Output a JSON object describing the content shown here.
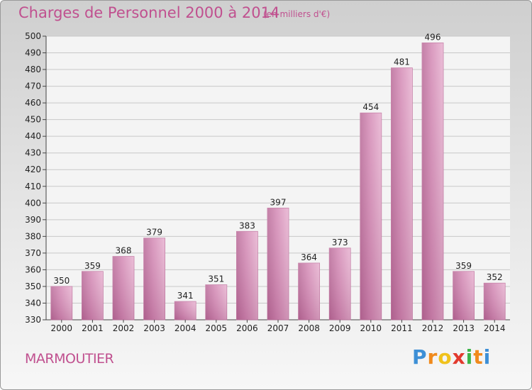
{
  "chart_data": {
    "type": "bar",
    "title": "Charges de Personnel 2000 à 2014",
    "subtitle": "(en milliers d'€)",
    "categories": [
      "2000",
      "2001",
      "2002",
      "2003",
      "2004",
      "2005",
      "2006",
      "2007",
      "2008",
      "2009",
      "2010",
      "2011",
      "2012",
      "2013",
      "2014"
    ],
    "values": [
      350,
      359,
      368,
      379,
      341,
      351,
      383,
      397,
      364,
      373,
      454,
      481,
      496,
      359,
      352
    ],
    "ylim": [
      330,
      500
    ],
    "yticks": [
      330,
      340,
      350,
      360,
      370,
      380,
      390,
      400,
      410,
      420,
      430,
      440,
      450,
      460,
      470,
      480,
      490,
      500
    ],
    "grid": true,
    "bar_color": "#d48ab5"
  },
  "commune": "MARMOUTIER",
  "logo": {
    "letters": [
      "P",
      "r",
      "o",
      "x",
      "i",
      "t",
      "i"
    ],
    "colors": [
      "#3d8fd6",
      "#f08a1c",
      "#f0c21c",
      "#e23a2e",
      "#3db54a",
      "#f08a1c",
      "#3d8fd6"
    ]
  }
}
